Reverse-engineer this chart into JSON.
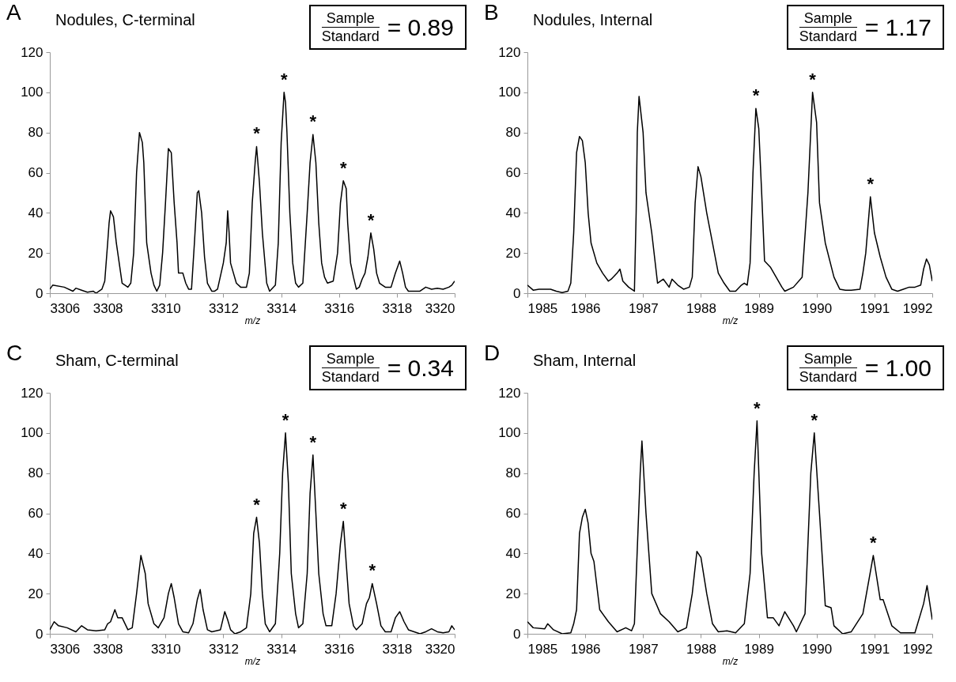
{
  "chart_data": [
    {
      "type": "line",
      "title": "Nodules, C-terminal",
      "xlabel": "m/z",
      "color": "#000000",
      "xlim": [
        3306,
        3320
      ],
      "xticks": [
        3306,
        3308,
        3310,
        3312,
        3314,
        3316,
        3318,
        3320
      ],
      "ylim": [
        0,
        120
      ],
      "yticks": [
        0,
        20,
        40,
        60,
        80,
        100,
        120
      ],
      "x": [
        3306.0,
        3306.1,
        3306.5,
        3306.8,
        3306.9,
        3307.1,
        3307.3,
        3307.5,
        3307.6,
        3307.8,
        3307.9,
        3308.0,
        3308.05,
        3308.1,
        3308.2,
        3308.3,
        3308.4,
        3308.5,
        3308.6,
        3308.7,
        3308.8,
        3308.9,
        3309.0,
        3309.1,
        3309.2,
        3309.25,
        3309.35,
        3309.5,
        3309.6,
        3309.7,
        3309.8,
        3309.9,
        3310.0,
        3310.1,
        3310.2,
        3310.3,
        3310.4,
        3310.45,
        3310.6,
        3310.7,
        3310.8,
        3310.9,
        3311.0,
        3311.1,
        3311.15,
        3311.25,
        3311.35,
        3311.45,
        3311.6,
        3311.7,
        3311.8,
        3312.0,
        3312.1,
        3312.15,
        3312.2,
        3312.25,
        3312.35,
        3312.45,
        3312.6,
        3312.8,
        3312.9,
        3313.0,
        3313.1,
        3313.15,
        3313.25,
        3313.35,
        3313.5,
        3313.6,
        3313.8,
        3313.9,
        3314.0,
        3314.1,
        3314.15,
        3314.2,
        3314.3,
        3314.4,
        3314.5,
        3314.6,
        3314.75,
        3314.9,
        3315.0,
        3315.1,
        3315.2,
        3315.3,
        3315.4,
        3315.5,
        3315.6,
        3315.8,
        3315.95,
        3316.05,
        3316.15,
        3316.25,
        3316.3,
        3316.4,
        3316.5,
        3316.6,
        3316.7,
        3316.8,
        3316.9,
        3317.0,
        3317.1,
        3317.2,
        3317.3,
        3317.4,
        3317.6,
        3317.8,
        3317.95,
        3318.1,
        3318.2,
        3318.3,
        3318.4,
        3318.6,
        3318.8,
        3319.0,
        3319.2,
        3319.4,
        3319.6,
        3319.8,
        3319.9,
        3320.0
      ],
      "values": [
        2,
        4,
        3,
        1,
        2.5,
        1.5,
        0.5,
        1,
        0,
        2,
        6,
        25,
        35,
        41,
        38,
        25,
        15,
        5,
        4,
        3,
        5,
        20,
        60,
        80,
        75,
        65,
        25,
        10,
        4,
        1,
        4,
        20,
        45,
        72,
        70,
        45,
        25,
        10,
        10,
        5,
        2,
        2,
        25,
        50,
        51,
        40,
        18,
        5,
        1,
        1,
        2,
        15,
        25,
        41,
        30,
        15,
        10,
        5,
        3,
        3,
        10,
        45,
        65,
        73,
        55,
        30,
        5,
        1,
        4,
        25,
        75,
        100,
        95,
        80,
        40,
        15,
        5,
        3,
        5,
        40,
        65,
        79,
        65,
        35,
        15,
        8,
        5,
        6,
        20,
        45,
        56,
        52,
        35,
        15,
        8,
        2,
        3,
        7,
        10,
        18,
        30,
        22,
        10,
        5,
        3,
        3,
        10,
        16,
        10,
        3,
        1,
        1,
        1,
        3,
        2,
        2.5,
        2,
        3,
        4,
        6
      ],
      "annotations": [
        "A",
        "Sample",
        "Standard",
        "= 0.89",
        {
          "text": "*",
          "x": 3313.15,
          "y": 73
        },
        {
          "text": "*",
          "x": 3314.1,
          "y": 100
        },
        {
          "text": "*",
          "x": 3315.1,
          "y": 79
        },
        {
          "text": "*",
          "x": 3316.15,
          "y": 56
        },
        {
          "text": "*",
          "x": 3317.1,
          "y": 30
        }
      ]
    },
    {
      "type": "line",
      "title": "Nodules, Internal",
      "xlabel": "m/z",
      "color": "#000000",
      "xlim": [
        1985,
        1992
      ],
      "xticks": [
        1985,
        1986,
        1987,
        1988,
        1989,
        1990,
        1991,
        1992
      ],
      "ylim": [
        0,
        120
      ],
      "yticks": [
        0,
        20,
        40,
        60,
        80,
        100,
        120
      ],
      "x": [
        1985.0,
        1985.1,
        1985.2,
        1985.4,
        1985.5,
        1985.6,
        1985.7,
        1985.75,
        1985.8,
        1985.85,
        1985.9,
        1985.95,
        1986.0,
        1986.05,
        1986.1,
        1986.2,
        1986.3,
        1986.4,
        1986.45,
        1986.55,
        1986.6,
        1986.65,
        1986.75,
        1986.85,
        1986.88,
        1986.9,
        1986.93,
        1987.0,
        1987.05,
        1987.15,
        1987.25,
        1987.35,
        1987.45,
        1987.5,
        1987.6,
        1987.7,
        1987.8,
        1987.85,
        1987.9,
        1987.95,
        1988.0,
        1988.1,
        1988.2,
        1988.3,
        1988.4,
        1988.5,
        1988.6,
        1988.7,
        1988.75,
        1988.8,
        1988.85,
        1988.9,
        1988.95,
        1989.0,
        1989.05,
        1989.1,
        1989.2,
        1989.3,
        1989.4,
        1989.45,
        1989.6,
        1989.75,
        1989.85,
        1989.93,
        1990.0,
        1990.05,
        1990.15,
        1990.3,
        1990.4,
        1990.5,
        1990.6,
        1990.75,
        1990.8,
        1990.85,
        1990.93,
        1991.0,
        1991.1,
        1991.2,
        1991.3,
        1991.4,
        1991.5,
        1991.6,
        1991.7,
        1991.8,
        1991.85,
        1991.9,
        1991.95,
        1992.0
      ],
      "values": [
        4,
        1.5,
        2,
        2,
        1,
        0.3,
        1,
        5,
        30,
        70,
        78,
        76,
        65,
        40,
        25,
        15,
        10,
        6,
        7,
        10,
        12,
        6,
        3,
        1,
        40,
        80,
        98,
        80,
        50,
        30,
        5,
        7,
        3,
        7,
        4,
        2,
        3,
        8,
        45,
        63,
        58,
        40,
        25,
        10,
        5,
        1,
        1,
        4,
        5,
        4,
        15,
        60,
        92,
        82,
        50,
        16,
        13,
        8,
        3,
        1,
        3,
        8,
        50,
        100,
        85,
        45,
        25,
        8,
        2,
        1.5,
        1.5,
        2,
        10,
        20,
        48,
        30,
        18,
        8,
        2,
        1,
        2,
        3,
        3,
        4,
        12,
        17,
        14,
        6
      ],
      "annotations": [
        "B",
        "Sample",
        "Standard",
        "= 1.17",
        {
          "text": "*",
          "x": 1988.95,
          "y": 92
        },
        {
          "text": "*",
          "x": 1989.93,
          "y": 100
        },
        {
          "text": "*",
          "x": 1990.93,
          "y": 48
        }
      ]
    },
    {
      "type": "line",
      "title": "Sham, C-terminal",
      "xlabel": "m/z",
      "color": "#000000",
      "xlim": [
        3306,
        3320
      ],
      "xticks": [
        3306,
        3308,
        3310,
        3312,
        3314,
        3316,
        3318,
        3320
      ],
      "ylim": [
        0,
        120
      ],
      "yticks": [
        0,
        20,
        40,
        60,
        80,
        100,
        120
      ],
      "x": [
        3306.0,
        3306.15,
        3306.3,
        3306.6,
        3306.9,
        3307.1,
        3307.3,
        3307.6,
        3307.9,
        3308.0,
        3308.1,
        3308.25,
        3308.35,
        3308.5,
        3308.7,
        3308.85,
        3309.0,
        3309.15,
        3309.3,
        3309.4,
        3309.6,
        3309.75,
        3309.95,
        3310.1,
        3310.2,
        3310.3,
        3310.45,
        3310.6,
        3310.8,
        3310.95,
        3311.1,
        3311.2,
        3311.3,
        3311.45,
        3311.6,
        3311.9,
        3312.0,
        3312.05,
        3312.15,
        3312.25,
        3312.4,
        3312.6,
        3312.8,
        3312.95,
        3313.05,
        3313.15,
        3313.25,
        3313.35,
        3313.45,
        3313.6,
        3313.8,
        3313.95,
        3314.05,
        3314.15,
        3314.25,
        3314.35,
        3314.5,
        3314.6,
        3314.75,
        3314.9,
        3315.0,
        3315.1,
        3315.2,
        3315.3,
        3315.45,
        3315.55,
        3315.75,
        3315.9,
        3316.05,
        3316.15,
        3316.25,
        3316.35,
        3316.5,
        3316.6,
        3316.8,
        3316.95,
        3317.05,
        3317.15,
        3317.3,
        3317.45,
        3317.6,
        3317.8,
        3317.95,
        3318.1,
        3318.25,
        3318.4,
        3318.6,
        3318.8,
        3319.0,
        3319.2,
        3319.4,
        3319.6,
        3319.8,
        3319.9,
        3320.0
      ],
      "values": [
        2,
        6,
        4,
        3,
        1,
        4,
        2,
        1.5,
        2,
        5,
        6,
        12,
        8,
        8,
        2,
        3,
        20,
        39,
        30,
        15,
        5,
        3,
        8,
        20,
        25,
        18,
        5,
        1,
        0.5,
        5,
        17,
        22,
        12,
        2,
        1,
        2,
        8,
        11,
        7,
        2,
        0,
        1,
        3,
        20,
        50,
        58,
        45,
        20,
        5,
        1,
        5,
        40,
        80,
        100,
        75,
        30,
        10,
        3,
        5,
        30,
        70,
        89,
        60,
        30,
        10,
        4,
        4,
        20,
        45,
        56,
        35,
        15,
        4,
        2,
        5,
        15,
        18,
        25,
        15,
        4,
        1,
        1,
        8,
        11,
        6,
        2,
        1,
        0,
        1,
        2.5,
        1,
        0.5,
        1,
        4,
        2
      ],
      "annotations": [
        "C",
        "Sample",
        "Standard",
        "= 0.34",
        {
          "text": "*",
          "x": 3313.15,
          "y": 58
        },
        {
          "text": "*",
          "x": 3314.15,
          "y": 100
        },
        {
          "text": "*",
          "x": 3315.1,
          "y": 89
        },
        {
          "text": "*",
          "x": 3316.15,
          "y": 56
        },
        {
          "text": "*",
          "x": 3317.15,
          "y": 25
        }
      ]
    },
    {
      "type": "line",
      "title": "Sham, Internal",
      "xlabel": "m/z",
      "color": "#000000",
      "xlim": [
        1985,
        1992
      ],
      "xticks": [
        1985,
        1986,
        1987,
        1988,
        1989,
        1990,
        1991,
        1992
      ],
      "ylim": [
        0,
        120
      ],
      "yticks": [
        0,
        20,
        40,
        60,
        80,
        100,
        120
      ],
      "x": [
        1985.0,
        1985.1,
        1985.3,
        1985.35,
        1985.45,
        1985.6,
        1985.75,
        1985.8,
        1985.85,
        1985.9,
        1985.95,
        1986.0,
        1986.05,
        1986.1,
        1986.15,
        1986.25,
        1986.4,
        1986.55,
        1986.7,
        1986.8,
        1986.85,
        1986.95,
        1986.98,
        1987.05,
        1987.15,
        1987.3,
        1987.45,
        1987.6,
        1987.75,
        1987.85,
        1987.93,
        1988.0,
        1988.1,
        1988.2,
        1988.3,
        1988.45,
        1988.6,
        1988.75,
        1988.85,
        1988.92,
        1988.97,
        1989.05,
        1989.15,
        1989.25,
        1989.35,
        1989.45,
        1989.6,
        1989.65,
        1989.8,
        1989.9,
        1989.96,
        1990.05,
        1990.15,
        1990.25,
        1990.3,
        1990.45,
        1990.6,
        1990.8,
        1990.98,
        1991.1,
        1991.15,
        1991.3,
        1991.45,
        1991.7,
        1991.85,
        1991.91,
        1992.0
      ],
      "values": [
        6,
        3,
        2.5,
        5,
        2,
        0,
        0.5,
        5,
        12,
        50,
        58,
        62,
        55,
        40,
        36,
        12,
        6,
        1,
        3,
        1.5,
        5,
        80,
        96,
        60,
        20,
        10,
        6,
        1,
        3,
        20,
        41,
        38,
        20,
        5,
        1,
        1.5,
        0.5,
        5,
        30,
        80,
        106,
        40,
        8,
        8,
        4,
        11,
        4,
        1,
        10,
        80,
        100,
        60,
        14,
        13,
        4,
        0,
        1,
        10,
        39,
        17,
        17,
        4,
        0.5,
        0.5,
        15,
        24,
        7
      ],
      "annotations": [
        "D",
        "Sample",
        "Standard",
        "= 1.00",
        {
          "text": "*",
          "x": 1988.97,
          "y": 106
        },
        {
          "text": "*",
          "x": 1989.96,
          "y": 100
        },
        {
          "text": "*",
          "x": 1990.98,
          "y": 39
        }
      ]
    }
  ]
}
